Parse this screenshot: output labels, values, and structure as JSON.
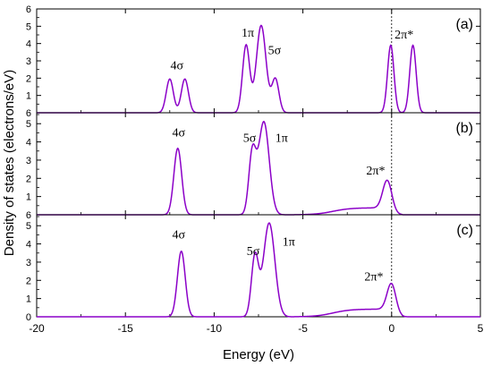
{
  "chart_data": {
    "type": "line",
    "xlabel": "Energy (eV)",
    "ylabel": "Density of states (electrons/eV)",
    "xlim": [
      -20,
      5
    ],
    "x_ticks": [
      "-20",
      "-15",
      "-10",
      "-5",
      "0",
      "5"
    ],
    "fermi_level_x": 0,
    "line_color": "#8b00c8",
    "panels": [
      {
        "label": "(a)",
        "ylim": [
          0,
          6
        ],
        "y_ticks": [
          "1",
          "2",
          "3",
          "4",
          "5",
          "6"
        ],
        "y_baseline_label": "6",
        "peaks": [
          {
            "center": -12.5,
            "height": 1.95,
            "width": 0.2
          },
          {
            "center": -11.65,
            "height": 1.95,
            "width": 0.2
          },
          {
            "center": -8.2,
            "height": 3.9,
            "width": 0.2
          },
          {
            "center": -7.35,
            "height": 5.05,
            "width": 0.27
          },
          {
            "center": -6.55,
            "height": 1.95,
            "width": 0.2
          },
          {
            "center": -0.05,
            "height": 3.9,
            "width": 0.18
          },
          {
            "center": 1.2,
            "height": 3.9,
            "width": 0.18
          }
        ],
        "annotations": [
          {
            "text": "4σ",
            "x": -12.1,
            "y": 2.5
          },
          {
            "text": "1π",
            "x": -8.1,
            "y": 4.4
          },
          {
            "text": "5σ",
            "x": -6.6,
            "y": 3.4
          },
          {
            "text": "2π*",
            "x": 0.7,
            "y": 4.3
          }
        ]
      },
      {
        "label": "(b)",
        "ylim": [
          0,
          5.6
        ],
        "y_ticks": [
          "1",
          "2",
          "3",
          "4",
          "5"
        ],
        "y_baseline_label": "6",
        "peaks": [
          {
            "center": -12.05,
            "height": 3.65,
            "width": 0.22
          },
          {
            "center": -7.85,
            "height": 3.3,
            "width": 0.2
          },
          {
            "center": -7.2,
            "height": 5.1,
            "width": 0.3
          },
          {
            "center": -0.25,
            "height": 1.55,
            "width": 0.25
          }
        ],
        "tail": {
          "from": -5.5,
          "to": 0,
          "level": 0.38
        },
        "annotations": [
          {
            "text": "4σ",
            "x": -12.0,
            "y": 4.3
          },
          {
            "text": "5σ",
            "x": -8.0,
            "y": 4.0
          },
          {
            "text": "1π",
            "x": -6.2,
            "y": 4.0
          },
          {
            "text": "2π*",
            "x": -0.9,
            "y": 2.2
          }
        ]
      },
      {
        "label": "(c)",
        "ylim": [
          0,
          5.6
        ],
        "y_ticks": [
          "0",
          "1",
          "2",
          "3",
          "4",
          "5"
        ],
        "peaks": [
          {
            "center": -11.85,
            "height": 3.6,
            "width": 0.22
          },
          {
            "center": -7.7,
            "height": 3.3,
            "width": 0.2
          },
          {
            "center": -6.9,
            "height": 5.15,
            "width": 0.32
          },
          {
            "center": 0.0,
            "height": 1.55,
            "width": 0.25
          }
        ],
        "tail": {
          "from": -5.5,
          "to": 0,
          "level": 0.42
        },
        "annotations": [
          {
            "text": "4σ",
            "x": -12.0,
            "y": 4.3
          },
          {
            "text": "5σ",
            "x": -7.8,
            "y": 3.4
          },
          {
            "text": "1π",
            "x": -5.8,
            "y": 3.9
          },
          {
            "text": "2π*",
            "x": -1.0,
            "y": 2.0
          }
        ]
      }
    ]
  }
}
